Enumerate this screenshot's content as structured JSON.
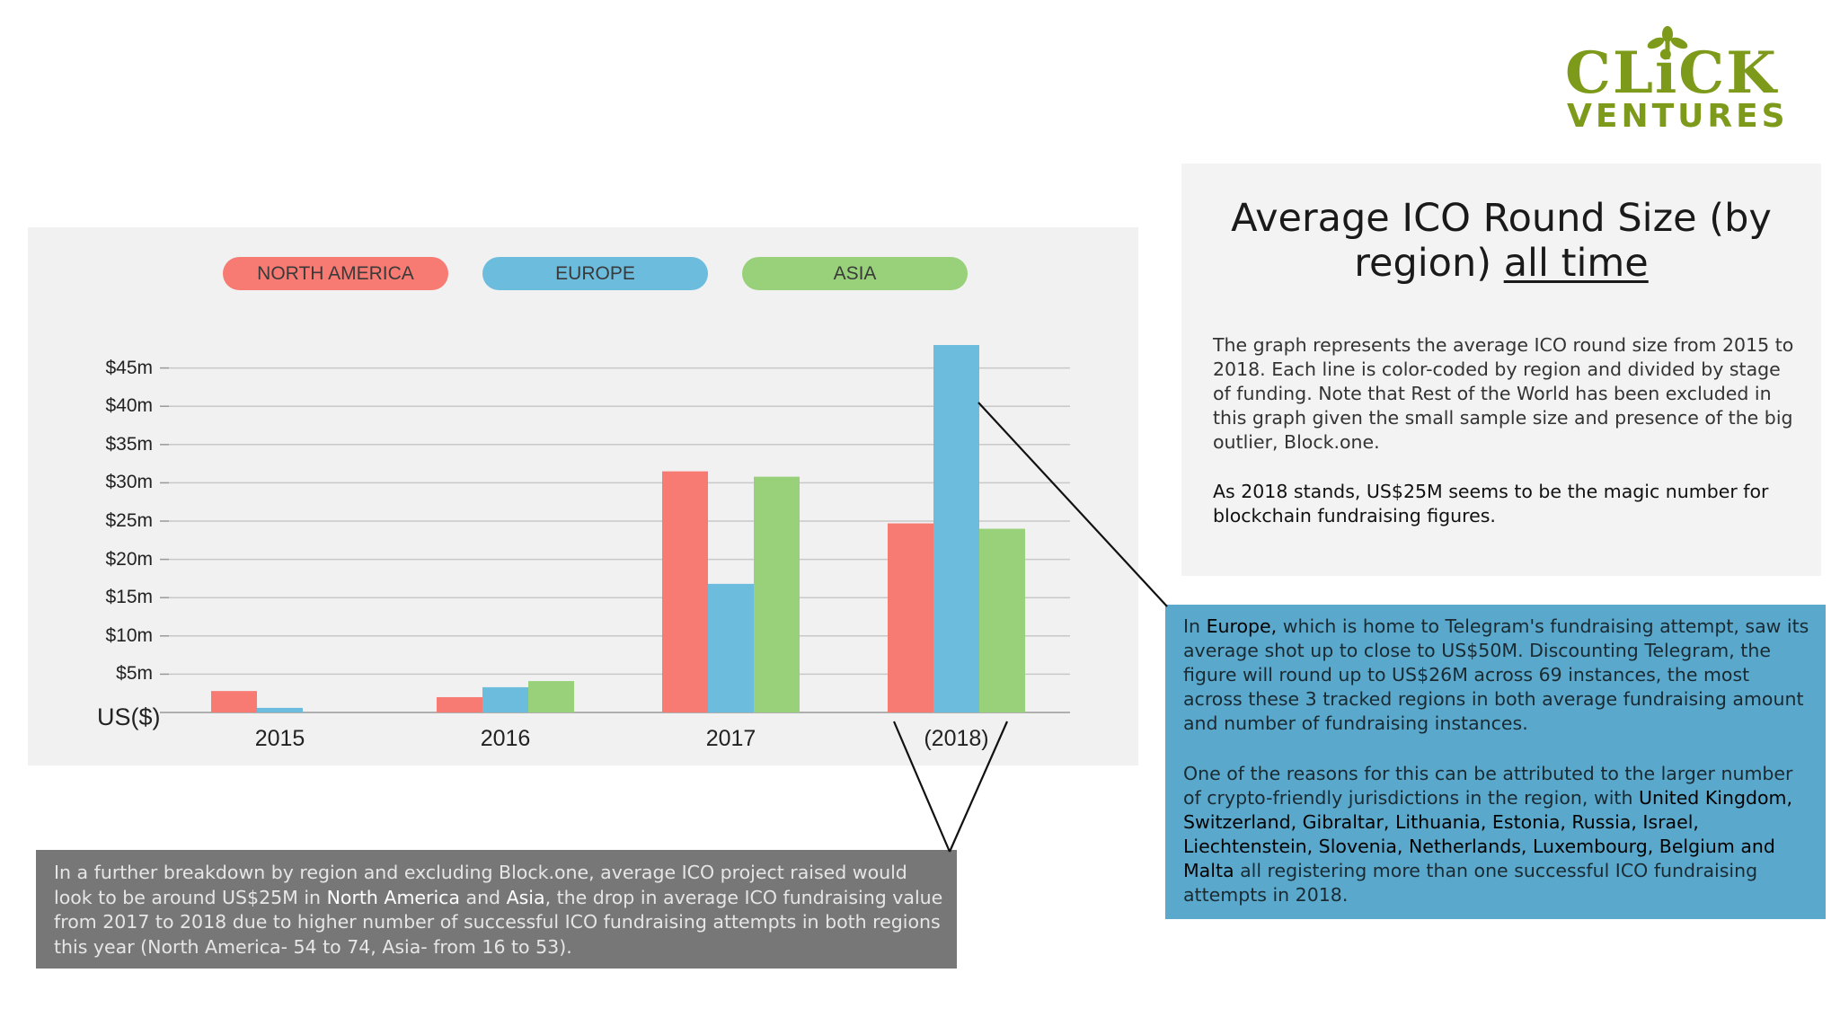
{
  "logo": {
    "line1": "CLiCK",
    "line2": "VENTURES",
    "color": "#7d9a1a"
  },
  "legend": [
    {
      "label": "NORTH AMERICA",
      "color": "#f87b73"
    },
    {
      "label": "EUROPE",
      "color": "#6cbcdd"
    },
    {
      "label": "ASIA",
      "color": "#98d17a"
    }
  ],
  "chart_data": {
    "type": "bar",
    "categories": [
      "2015",
      "2016",
      "2017",
      "(2018)"
    ],
    "series": [
      {
        "name": "NORTH AMERICA",
        "color": "#f87b73",
        "values": [
          2.8,
          2.0,
          31.5,
          24.7
        ]
      },
      {
        "name": "EUROPE",
        "color": "#6cbcdd",
        "values": [
          0.6,
          3.3,
          16.8,
          48.0
        ]
      },
      {
        "name": "ASIA",
        "color": "#98d17a",
        "values": [
          null,
          4.1,
          30.8,
          24.0
        ]
      }
    ],
    "yticks": [
      "$5m",
      "$10m",
      "$15m",
      "$20m",
      "$25m",
      "$30m",
      "$35m",
      "$40m",
      "$45m"
    ],
    "ylabel": "US($)",
    "ylim": [
      0,
      48
    ],
    "grid": true,
    "legend_position": "top"
  },
  "info": {
    "title_part1": "Average ICO Round Size (by region) ",
    "title_part2": "all time",
    "para1": "The graph represents the average ICO round size from 2015 to 2018. Each line is color-coded by region and divided by stage of funding. Note that Rest of the World has been excluded in this graph given the small sample size and presence of the big outlier, Block.one.",
    "para2": "As 2018 stands, US$25M seems to be the magic number for blockchain fundraising figures."
  },
  "europe": {
    "p1_a": "In ",
    "p1_b": "Europe,",
    "p1_c": " which is home to Telegram's fundraising attempt, saw its average shot up to close to US$50M. Discounting Telegram, the figure will round up to US$26M across 69 instances, the most across these 3 tracked regions in both average fundraising amount and number of fundraising instances.",
    "p2_a": "One of the reasons for this can be attributed to the larger number of crypto-friendly jurisdictions in the region, with ",
    "p2_b": "United Kingdom, Switzerland, Gibraltar, Lithuania, Estonia, Russia, Israel, Liechtenstein, Slovenia, Netherlands, Luxembourg, Belgium and Malta",
    "p2_c": " all registering more than one successful ICO fundraising attempts in 2018."
  },
  "breakdown": {
    "a": "In a further breakdown by region and excluding Block.one, average ICO project raised would look to be around US$25M in ",
    "b": "North America",
    "c": " and ",
    "d": "Asia",
    "e": ", the drop in average ICO fundraising value from 2017 to 2018 due to higher number of successful ICO fundraising attempts in both regions this year (North America- 54 to 74, Asia- from 16 to 53)."
  }
}
